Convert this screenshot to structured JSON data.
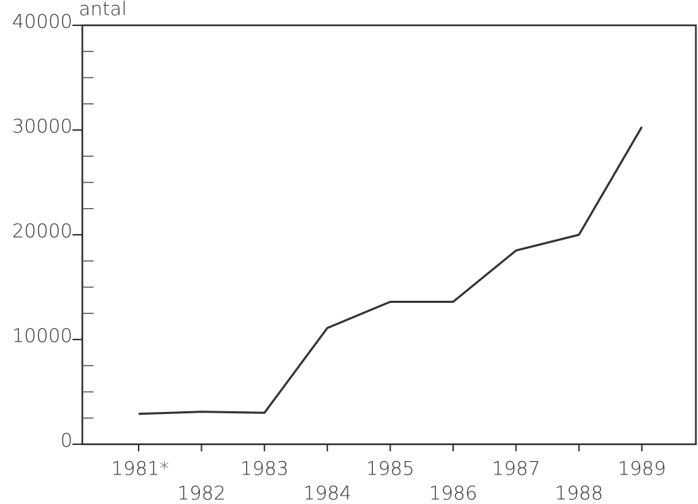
{
  "chart_data": {
    "type": "line",
    "ylabel": "antal",
    "categories": [
      "1981*",
      "1982",
      "1983",
      "1984",
      "1985",
      "1986",
      "1987",
      "1988",
      "1989"
    ],
    "series": [
      {
        "color": "#333333",
        "values": [
          2900,
          3100,
          3000,
          11100,
          13600,
          13600,
          18500,
          20000,
          30300
        ]
      }
    ],
    "ylim": [
      0,
      40000
    ],
    "yticks": [
      0,
      10000,
      20000,
      30000,
      40000
    ],
    "yminorticks": [
      2500,
      5000,
      7500,
      12500,
      15000,
      17500,
      22500,
      25000,
      27500,
      32500,
      35000,
      37500
    ]
  }
}
